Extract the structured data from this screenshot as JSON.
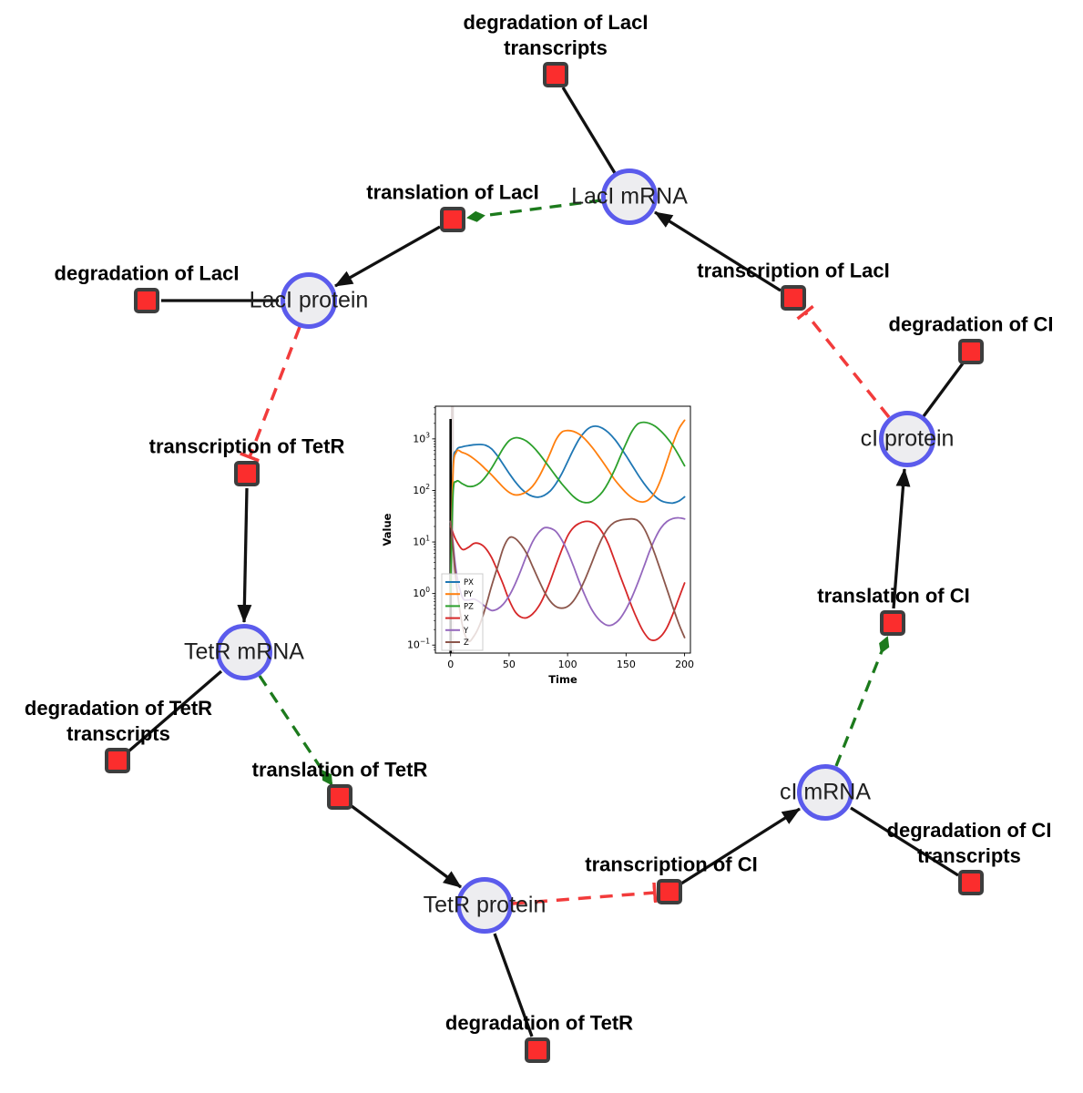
{
  "background": "#ffffff",
  "colors": {
    "species_fill": "#ededf0",
    "species_ring": "#5b5bec",
    "reaction_fill": "#fb2d2d",
    "reaction_border": "#3d3d3d",
    "edge_black": "#111111",
    "modifier_green": "#1c7a1c",
    "inhibition_red": "#f23b3b"
  },
  "diagram": {
    "species": [
      {
        "label": "LacI mRNA"
      },
      {
        "label": "LacI protein"
      },
      {
        "label": "TetR mRNA"
      },
      {
        "label": "TetR protein"
      },
      {
        "label": "cI mRNA"
      },
      {
        "label": "cI protein"
      }
    ],
    "reactions": [
      {
        "label": "degradation of LacI transcripts"
      },
      {
        "label": "translation of LacI"
      },
      {
        "label": "degradation of LacI"
      },
      {
        "label": "transcription of LacI"
      },
      {
        "label": "degradation of CI"
      },
      {
        "label": "transcription of TetR"
      },
      {
        "label": "degradation of TetR transcripts"
      },
      {
        "label": "translation of TetR"
      },
      {
        "label": "degradation of TetR"
      },
      {
        "label": "transcription of CI"
      },
      {
        "label": "degradation of CI transcripts"
      },
      {
        "label": "translation of CI"
      }
    ],
    "edges": [
      {
        "from": "LacI mRNA",
        "to": "degradation of LacI transcripts",
        "type": "consumption"
      },
      {
        "from": "transcription of LacI",
        "to": "LacI mRNA",
        "type": "production"
      },
      {
        "from": "LacI mRNA",
        "to": "translation of LacI",
        "type": "modifier"
      },
      {
        "from": "translation of LacI",
        "to": "LacI protein",
        "type": "production"
      },
      {
        "from": "LacI protein",
        "to": "degradation of LacI",
        "type": "consumption"
      },
      {
        "from": "LacI protein",
        "to": "transcription of TetR",
        "type": "inhibition"
      },
      {
        "from": "transcription of TetR",
        "to": "TetR mRNA",
        "type": "production"
      },
      {
        "from": "TetR mRNA",
        "to": "degradation of TetR transcripts",
        "type": "consumption"
      },
      {
        "from": "TetR mRNA",
        "to": "translation of TetR",
        "type": "modifier"
      },
      {
        "from": "translation of TetR",
        "to": "TetR protein",
        "type": "production"
      },
      {
        "from": "TetR protein",
        "to": "degradation of TetR",
        "type": "consumption"
      },
      {
        "from": "TetR protein",
        "to": "transcription of CI",
        "type": "inhibition"
      },
      {
        "from": "transcription of CI",
        "to": "cI mRNA",
        "type": "production"
      },
      {
        "from": "cI mRNA",
        "to": "degradation of CI transcripts",
        "type": "consumption"
      },
      {
        "from": "cI mRNA",
        "to": "translation of CI",
        "type": "modifier"
      },
      {
        "from": "translation of CI",
        "to": "cI protein",
        "type": "production"
      },
      {
        "from": "cI protein",
        "to": "degradation of CI",
        "type": "consumption"
      },
      {
        "from": "cI protein",
        "to": "transcription of LacI",
        "type": "inhibition"
      }
    ]
  },
  "chart_data": {
    "type": "line",
    "title": "",
    "xlabel": "Time",
    "ylabel": "Value",
    "yscale": "log",
    "xlim": [
      -13,
      205
    ],
    "ylim": [
      0.07,
      4300
    ],
    "xticks": [
      0,
      50,
      100,
      150,
      200
    ],
    "ytick_exponents": [
      -1,
      0,
      1,
      2,
      3
    ],
    "legend_position": "lower left",
    "grid": false,
    "annotations": {
      "vline_x": 0,
      "vspan": [
        0.3,
        2.8
      ]
    },
    "x": [
      0,
      2,
      5,
      10,
      15,
      20,
      25,
      30,
      35,
      40,
      45,
      50,
      55,
      60,
      65,
      70,
      75,
      80,
      85,
      90,
      95,
      100,
      105,
      110,
      115,
      120,
      125,
      130,
      135,
      140,
      145,
      150,
      155,
      160,
      165,
      170,
      175,
      180,
      185,
      190,
      195,
      200
    ],
    "series": [
      {
        "name": "PX",
        "color": "#1f77b4",
        "values": [
          1,
          250,
          600,
          700,
          740,
          770,
          780,
          750,
          640,
          470,
          320,
          215,
          150,
          110,
          88,
          77,
          74,
          80,
          97,
          135,
          210,
          360,
          620,
          1000,
          1400,
          1700,
          1760,
          1600,
          1320,
          1000,
          700,
          470,
          310,
          205,
          140,
          100,
          76,
          63,
          58,
          57,
          62,
          75
        ]
      },
      {
        "name": "PY",
        "color": "#ff7f0e",
        "values": [
          1,
          200,
          560,
          545,
          490,
          410,
          330,
          258,
          200,
          152,
          115,
          92,
          82,
          84,
          95,
          120,
          175,
          290,
          520,
          950,
          1350,
          1450,
          1400,
          1230,
          980,
          730,
          520,
          360,
          245,
          165,
          120,
          90,
          72,
          62,
          60,
          68,
          95,
          170,
          370,
          800,
          1550,
          2300
        ]
      },
      {
        "name": "PZ",
        "color": "#2ca02c",
        "values": [
          1,
          80,
          150,
          135,
          120,
          122,
          140,
          185,
          270,
          420,
          660,
          920,
          1050,
          1020,
          900,
          720,
          540,
          385,
          270,
          190,
          135,
          100,
          76,
          63,
          58,
          60,
          72,
          95,
          145,
          245,
          450,
          820,
          1400,
          1950,
          2100,
          2000,
          1750,
          1400,
          1050,
          740,
          480,
          300
        ]
      },
      {
        "name": "X",
        "color": "#d62728",
        "values": [
          20,
          15,
          10.5,
          7.2,
          7.8,
          9.4,
          9.2,
          7.5,
          5.0,
          2.8,
          1.5,
          0.75,
          0.45,
          0.35,
          0.34,
          0.4,
          0.55,
          0.9,
          1.7,
          3.5,
          7,
          13,
          19,
          23,
          25,
          24.5,
          21,
          15,
          9,
          4.5,
          2.2,
          1.1,
          0.55,
          0.3,
          0.18,
          0.13,
          0.125,
          0.15,
          0.22,
          0.4,
          0.8,
          1.6
        ]
      },
      {
        "name": "Y",
        "color": "#9467bd",
        "values": [
          25,
          10,
          2.5,
          0.85,
          0.75,
          0.78,
          0.68,
          0.55,
          0.47,
          0.5,
          0.62,
          0.9,
          1.5,
          2.8,
          5.5,
          10,
          15,
          18.8,
          18.5,
          16,
          11,
          6.5,
          3.4,
          1.7,
          0.9,
          0.52,
          0.35,
          0.27,
          0.24,
          0.26,
          0.33,
          0.5,
          0.85,
          1.6,
          3.2,
          6.5,
          12,
          19,
          25,
          28.5,
          29.5,
          28
        ]
      },
      {
        "name": "Z",
        "color": "#8c564b",
        "values": [
          25,
          8,
          1.5,
          0.25,
          0.12,
          0.15,
          0.25,
          0.55,
          1.4,
          3.2,
          7.5,
          12,
          11.8,
          9,
          6,
          3.4,
          1.9,
          1.1,
          0.72,
          0.56,
          0.52,
          0.56,
          0.72,
          1.1,
          1.9,
          3.6,
          7,
          12.5,
          19,
          24,
          26.5,
          27.5,
          28,
          26,
          19,
          11,
          5.5,
          2.6,
          1.2,
          0.55,
          0.26,
          0.14
        ]
      }
    ]
  }
}
